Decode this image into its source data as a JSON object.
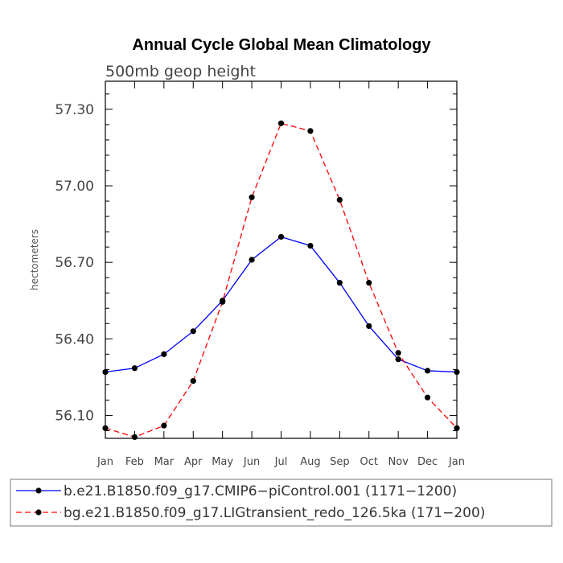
{
  "chart_data": {
    "type": "line",
    "title": "Annual Cycle Global Mean Climatology",
    "subtitle": "500mb geop height",
    "xlabel": "",
    "ylabel": "hectometers",
    "categories": [
      "Jan",
      "Feb",
      "Mar",
      "Apr",
      "May",
      "Jun",
      "Jul",
      "Aug",
      "Sep",
      "Oct",
      "Nov",
      "Dec",
      "Jan"
    ],
    "ylim": [
      56.01,
      57.41
    ],
    "yticks": [
      56.1,
      56.4,
      56.7,
      57.0,
      57.3
    ],
    "ytick_labels": [
      "56.10",
      "56.40",
      "56.70",
      "57.00",
      "57.30"
    ],
    "legend_position": "bottom",
    "series": [
      {
        "name": "b.e21.B1850.f09_g17.CMIP6−piControl.001 (1171−1200)",
        "color": "#0000ff",
        "dash": "solid",
        "values": [
          56.27,
          56.285,
          56.34,
          56.43,
          56.55,
          56.71,
          56.8,
          56.765,
          56.62,
          56.45,
          56.32,
          56.275,
          56.27
        ]
      },
      {
        "name": "bg.e21.B1850.f09_g17.LIGtransient_redo_126.5ka (171−200)",
        "color": "#ff0000",
        "dash": "dashed",
        "values": [
          56.05,
          56.015,
          56.06,
          56.235,
          56.545,
          56.955,
          57.245,
          57.215,
          56.945,
          56.62,
          56.345,
          56.17,
          56.05
        ]
      }
    ]
  }
}
